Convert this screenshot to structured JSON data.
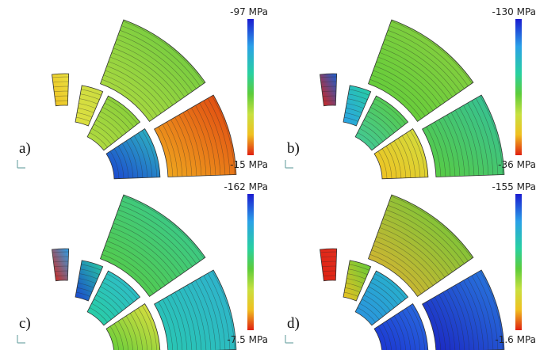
{
  "panels": [
    {
      "label": "a)",
      "scale_max": "-97 MPa",
      "scale_min": "-15 MPa"
    },
    {
      "label": "b)",
      "scale_max": "-130 MPa",
      "scale_min": "-36 MPa"
    },
    {
      "label": "c)",
      "scale_max": "-162 MPa",
      "scale_min": "-7.5 MPa"
    },
    {
      "label": "d)",
      "scale_max": "-155 MPa",
      "scale_min": "-1.6 MPa"
    }
  ]
}
